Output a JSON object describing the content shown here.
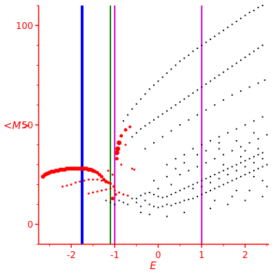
{
  "chart_data": {
    "type": "scatter",
    "xlabel": "E",
    "ylabel": "<M>",
    "xlim": [
      -2.75,
      2.55
    ],
    "ylim": [
      -10,
      110
    ],
    "x_ticks": [
      "-2",
      "-1",
      "0",
      "1",
      "2"
    ],
    "x_tick_values": [
      -2,
      -1,
      0,
      1,
      2
    ],
    "y_ticks": [
      "0",
      "50",
      "100"
    ],
    "y_tick_values": [
      0,
      50,
      100
    ],
    "colors": {
      "axis": "#ff0000",
      "points_black": "#000000",
      "points_red": "#ff0000",
      "line_blue": "#0000ff",
      "line_green": "#008000",
      "line_magenta": "#cc00cc"
    },
    "vertical_lines": [
      {
        "x": -1.75,
        "color": "#0000ff",
        "thick": true
      },
      {
        "x": -1.1,
        "color": "#008000",
        "thick": false
      },
      {
        "x": -1.0,
        "color": "#cc00cc",
        "thick": false
      },
      {
        "x": 1.0,
        "color": "#cc00cc",
        "thick": false
      }
    ],
    "red_series": [
      {
        "x": -2.65,
        "y": 24,
        "r": 3
      },
      {
        "x": -2.6,
        "y": 25,
        "r": 3
      },
      {
        "x": -2.55,
        "y": 25.5,
        "r": 3
      },
      {
        "x": -2.5,
        "y": 26,
        "r": 3
      },
      {
        "x": -2.45,
        "y": 26.5,
        "r": 3
      },
      {
        "x": -2.4,
        "y": 26.5,
        "r": 3
      },
      {
        "x": -2.35,
        "y": 27,
        "r": 3
      },
      {
        "x": -2.3,
        "y": 27,
        "r": 3
      },
      {
        "x": -2.25,
        "y": 27.5,
        "r": 3
      },
      {
        "x": -2.2,
        "y": 27.5,
        "r": 3
      },
      {
        "x": -2.15,
        "y": 27.5,
        "r": 3
      },
      {
        "x": -2.1,
        "y": 28,
        "r": 3
      },
      {
        "x": -2.05,
        "y": 28,
        "r": 3
      },
      {
        "x": -2.0,
        "y": 28,
        "r": 3
      },
      {
        "x": -1.95,
        "y": 28,
        "r": 3
      },
      {
        "x": -1.9,
        "y": 28,
        "r": 3
      },
      {
        "x": -1.85,
        "y": 28,
        "r": 3
      },
      {
        "x": -1.8,
        "y": 28,
        "r": 3
      },
      {
        "x": -1.75,
        "y": 28,
        "r": 3
      },
      {
        "x": -1.7,
        "y": 28,
        "r": 3
      },
      {
        "x": -1.65,
        "y": 28,
        "r": 3
      },
      {
        "x": -1.6,
        "y": 27.5,
        "r": 3
      },
      {
        "x": -1.55,
        "y": 27.5,
        "r": 3
      },
      {
        "x": -1.5,
        "y": 27,
        "r": 3
      },
      {
        "x": -1.45,
        "y": 26.5,
        "r": 2.5
      },
      {
        "x": -1.4,
        "y": 26,
        "r": 2.5
      },
      {
        "x": -1.35,
        "y": 25,
        "r": 2.5
      },
      {
        "x": -1.3,
        "y": 24,
        "r": 2.5
      },
      {
        "x": -1.25,
        "y": 22.5,
        "r": 2.5
      },
      {
        "x": -1.2,
        "y": 21.5,
        "r": 2.5
      },
      {
        "x": -1.15,
        "y": 21,
        "r": 2
      },
      {
        "x": -1.1,
        "y": 20.5,
        "r": 2
      },
      {
        "x": -2.2,
        "y": 19,
        "r": 1.5
      },
      {
        "x": -2.1,
        "y": 19.5,
        "r": 1.5
      },
      {
        "x": -2.0,
        "y": 20,
        "r": 1.5
      },
      {
        "x": -1.9,
        "y": 21,
        "r": 1.5
      },
      {
        "x": -1.8,
        "y": 21.5,
        "r": 1.5
      },
      {
        "x": -1.7,
        "y": 22,
        "r": 1.5
      },
      {
        "x": -1.6,
        "y": 22.5,
        "r": 1.5
      },
      {
        "x": -1.5,
        "y": 22.5,
        "r": 1.5
      },
      {
        "x": -1.4,
        "y": 22.5,
        "r": 1.5
      },
      {
        "x": -1.3,
        "y": 22,
        "r": 1.5
      },
      {
        "x": -1.2,
        "y": 21.5,
        "r": 1.5
      },
      {
        "x": -1.1,
        "y": 20.5,
        "r": 1.5
      },
      {
        "x": -1.6,
        "y": 15.5,
        "r": 1.5
      },
      {
        "x": -1.5,
        "y": 16,
        "r": 1.5
      },
      {
        "x": -1.4,
        "y": 16.5,
        "r": 1.5
      },
      {
        "x": -1.3,
        "y": 17,
        "r": 1.5
      },
      {
        "x": -1.2,
        "y": 17.5,
        "r": 1.5
      },
      {
        "x": -1.1,
        "y": 18,
        "r": 1.5
      },
      {
        "x": -1.0,
        "y": 17,
        "r": 1.5
      },
      {
        "x": -0.9,
        "y": 16,
        "r": 1.5
      },
      {
        "x": -0.8,
        "y": 15,
        "r": 1.5
      },
      {
        "x": -0.7,
        "y": 14.5,
        "r": 1.5
      },
      {
        "x": -0.95,
        "y": 33,
        "r": 2.5
      },
      {
        "x": -0.95,
        "y": 36,
        "r": 3.5
      },
      {
        "x": -0.93,
        "y": 38,
        "r": 3.5
      },
      {
        "x": -0.9,
        "y": 41,
        "r": 3.5
      },
      {
        "x": -0.85,
        "y": 44.5,
        "r": 2.5
      },
      {
        "x": -0.75,
        "y": 47.5,
        "r": 2.5
      },
      {
        "x": -0.65,
        "y": 49,
        "r": 2
      },
      {
        "x": -0.75,
        "y": 40,
        "r": 1.5
      },
      {
        "x": -0.85,
        "y": 30,
        "r": 1.5
      },
      {
        "x": -1.05,
        "y": 25,
        "r": 1.5
      },
      {
        "x": -1.15,
        "y": 27,
        "r": 1.5
      },
      {
        "x": -0.6,
        "y": 28,
        "r": 1.5
      },
      {
        "x": -0.55,
        "y": 27.5,
        "r": 1.5
      },
      {
        "x": -1.05,
        "y": 13,
        "r": 2.5
      },
      {
        "x": -0.98,
        "y": 15,
        "r": 2
      },
      {
        "x": -1.02,
        "y": 19,
        "r": 2
      }
    ],
    "black_series": [
      {
        "x": -1.2,
        "y": 12
      },
      {
        "x": -1.1,
        "y": 11
      },
      {
        "x": -1.0,
        "y": 10
      },
      {
        "x": -0.9,
        "y": 12
      },
      {
        "x": -0.8,
        "y": 11
      },
      {
        "x": -0.7,
        "y": 10
      },
      {
        "x": -0.6,
        "y": 13
      },
      {
        "x": -0.5,
        "y": 11
      },
      {
        "x": -0.4,
        "y": 9
      },
      {
        "x": -0.3,
        "y": 12
      },
      {
        "x": -0.2,
        "y": 10
      },
      {
        "x": -0.1,
        "y": 9
      },
      {
        "x": 0.0,
        "y": 8.5
      },
      {
        "x": 0.1,
        "y": 9
      },
      {
        "x": 0.2,
        "y": 10
      },
      {
        "x": 0.3,
        "y": 9.5
      },
      {
        "x": 0.4,
        "y": 10.5
      },
      {
        "x": 0.5,
        "y": 11
      },
      {
        "x": 0.6,
        "y": 12
      },
      {
        "x": 0.7,
        "y": 12.5
      },
      {
        "x": 0.8,
        "y": 13
      },
      {
        "x": 0.9,
        "y": 14
      },
      {
        "x": 1.0,
        "y": 15
      },
      {
        "x": 1.1,
        "y": 16
      },
      {
        "x": 1.2,
        "y": 17
      },
      {
        "x": 1.3,
        "y": 18
      },
      {
        "x": 1.4,
        "y": 19
      },
      {
        "x": 1.5,
        "y": 20
      },
      {
        "x": 1.6,
        "y": 21
      },
      {
        "x": 1.7,
        "y": 22
      },
      {
        "x": 1.8,
        "y": 23
      },
      {
        "x": 1.9,
        "y": 24
      },
      {
        "x": 2.0,
        "y": 25
      },
      {
        "x": 2.1,
        "y": 26
      },
      {
        "x": 2.2,
        "y": 27
      },
      {
        "x": 2.3,
        "y": 28
      },
      {
        "x": 2.4,
        "y": 29
      },
      {
        "x": 2.5,
        "y": 30
      },
      {
        "x": -0.5,
        "y": 13
      },
      {
        "x": -0.4,
        "y": 14.5
      },
      {
        "x": -0.3,
        "y": 15.5
      },
      {
        "x": -0.2,
        "y": 16
      },
      {
        "x": -0.1,
        "y": 15
      },
      {
        "x": 0.0,
        "y": 14
      },
      {
        "x": 0.1,
        "y": 13.5
      },
      {
        "x": 0.2,
        "y": 14
      },
      {
        "x": 0.3,
        "y": 15
      },
      {
        "x": 0.4,
        "y": 16
      },
      {
        "x": 0.5,
        "y": 17
      },
      {
        "x": 0.6,
        "y": 18
      },
      {
        "x": 0.7,
        "y": 19
      },
      {
        "x": 0.8,
        "y": 20
      },
      {
        "x": 0.9,
        "y": 21
      },
      {
        "x": 1.0,
        "y": 22
      },
      {
        "x": 1.1,
        "y": 23
      },
      {
        "x": 1.2,
        "y": 24
      },
      {
        "x": 1.3,
        "y": 25
      },
      {
        "x": 1.4,
        "y": 26
      },
      {
        "x": 1.5,
        "y": 27
      },
      {
        "x": 1.6,
        "y": 28
      },
      {
        "x": 1.7,
        "y": 29
      },
      {
        "x": 1.8,
        "y": 30
      },
      {
        "x": 1.9,
        "y": 31
      },
      {
        "x": 2.0,
        "y": 32
      },
      {
        "x": 2.1,
        "y": 33
      },
      {
        "x": 2.2,
        "y": 34
      },
      {
        "x": 2.3,
        "y": 35
      },
      {
        "x": 2.4,
        "y": 36
      },
      {
        "x": -0.8,
        "y": 52
      },
      {
        "x": -0.7,
        "y": 55
      },
      {
        "x": -0.6,
        "y": 58
      },
      {
        "x": -0.5,
        "y": 60.5
      },
      {
        "x": -0.4,
        "y": 63
      },
      {
        "x": -0.3,
        "y": 65.5
      },
      {
        "x": -0.2,
        "y": 68
      },
      {
        "x": -0.1,
        "y": 70
      },
      {
        "x": 0.0,
        "y": 72
      },
      {
        "x": 0.1,
        "y": 74
      },
      {
        "x": 0.2,
        "y": 76
      },
      {
        "x": 0.3,
        "y": 78
      },
      {
        "x": 0.4,
        "y": 80
      },
      {
        "x": 0.5,
        "y": 82
      },
      {
        "x": 0.6,
        "y": 83.5
      },
      {
        "x": 0.7,
        "y": 85
      },
      {
        "x": 0.8,
        "y": 87
      },
      {
        "x": 0.9,
        "y": 88.5
      },
      {
        "x": 1.0,
        "y": 90
      },
      {
        "x": 1.1,
        "y": 91.5
      },
      {
        "x": 1.2,
        "y": 93
      },
      {
        "x": 1.3,
        "y": 94.5
      },
      {
        "x": 1.4,
        "y": 96
      },
      {
        "x": 1.5,
        "y": 97.5
      },
      {
        "x": 1.6,
        "y": 99
      },
      {
        "x": 1.7,
        "y": 100.5
      },
      {
        "x": 1.8,
        "y": 102
      },
      {
        "x": 1.9,
        "y": 103.5
      },
      {
        "x": 2.0,
        "y": 105
      },
      {
        "x": 2.1,
        "y": 106.5
      },
      {
        "x": 2.2,
        "y": 107.5
      },
      {
        "x": 2.3,
        "y": 109
      },
      {
        "x": 2.4,
        "y": 110
      },
      {
        "x": -0.6,
        "y": 44
      },
      {
        "x": -0.5,
        "y": 46
      },
      {
        "x": -0.4,
        "y": 48
      },
      {
        "x": -0.3,
        "y": 49.5
      },
      {
        "x": -0.2,
        "y": 51
      },
      {
        "x": -0.1,
        "y": 52.5
      },
      {
        "x": 0.0,
        "y": 54
      },
      {
        "x": 0.1,
        "y": 55.5
      },
      {
        "x": 0.2,
        "y": 57
      },
      {
        "x": 0.3,
        "y": 58.5
      },
      {
        "x": 0.4,
        "y": 60
      },
      {
        "x": 0.5,
        "y": 61.5
      },
      {
        "x": 0.6,
        "y": 63
      },
      {
        "x": 0.7,
        "y": 64.5
      },
      {
        "x": 0.8,
        "y": 66
      },
      {
        "x": 0.9,
        "y": 67.5
      },
      {
        "x": 1.0,
        "y": 69
      },
      {
        "x": 1.1,
        "y": 70.5
      },
      {
        "x": 1.2,
        "y": 72
      },
      {
        "x": 1.3,
        "y": 73.5
      },
      {
        "x": 1.4,
        "y": 75
      },
      {
        "x": 1.5,
        "y": 76.5
      },
      {
        "x": 1.6,
        "y": 78
      },
      {
        "x": 1.7,
        "y": 79.5
      },
      {
        "x": 1.8,
        "y": 81
      },
      {
        "x": 1.9,
        "y": 82.5
      },
      {
        "x": 2.0,
        "y": 84
      },
      {
        "x": 2.1,
        "y": 85.5
      },
      {
        "x": 2.2,
        "y": 87
      },
      {
        "x": 2.3,
        "y": 88.5
      },
      {
        "x": 2.4,
        "y": 90
      },
      {
        "x": -0.3,
        "y": 38
      },
      {
        "x": -0.1,
        "y": 41
      },
      {
        "x": 0.1,
        "y": 44
      },
      {
        "x": 0.3,
        "y": 47
      },
      {
        "x": 0.5,
        "y": 50
      },
      {
        "x": 0.7,
        "y": 52.5
      },
      {
        "x": 0.9,
        "y": 55
      },
      {
        "x": 1.1,
        "y": 57.5
      },
      {
        "x": 1.3,
        "y": 60
      },
      {
        "x": 1.5,
        "y": 62.5
      },
      {
        "x": 1.7,
        "y": 65
      },
      {
        "x": 1.9,
        "y": 67
      },
      {
        "x": 2.1,
        "y": 69
      },
      {
        "x": 2.3,
        "y": 71
      },
      {
        "x": 2.45,
        "y": 72.5
      },
      {
        "x": 0.2,
        "y": 30
      },
      {
        "x": 0.4,
        "y": 33
      },
      {
        "x": 0.6,
        "y": 35
      },
      {
        "x": 0.8,
        "y": 38
      },
      {
        "x": 1.0,
        "y": 40
      },
      {
        "x": 1.2,
        "y": 42
      },
      {
        "x": 1.4,
        "y": 44
      },
      {
        "x": 1.6,
        "y": 46
      },
      {
        "x": 1.8,
        "y": 48
      },
      {
        "x": 2.0,
        "y": 50
      },
      {
        "x": 2.2,
        "y": 52
      },
      {
        "x": 2.4,
        "y": 54
      },
      {
        "x": 0.5,
        "y": 25
      },
      {
        "x": 0.7,
        "y": 27
      },
      {
        "x": 0.9,
        "y": 29
      },
      {
        "x": 1.1,
        "y": 31
      },
      {
        "x": 1.3,
        "y": 33
      },
      {
        "x": 1.5,
        "y": 35
      },
      {
        "x": 1.7,
        "y": 37
      },
      {
        "x": 1.9,
        "y": 39
      },
      {
        "x": 2.1,
        "y": 41
      },
      {
        "x": 2.3,
        "y": 43
      },
      {
        "x": 2.5,
        "y": 45
      },
      {
        "x": 0.8,
        "y": 18
      },
      {
        "x": 1.0,
        "y": 19
      },
      {
        "x": 1.2,
        "y": 21
      },
      {
        "x": 1.4,
        "y": 23
      },
      {
        "x": 1.6,
        "y": 25
      },
      {
        "x": 1.8,
        "y": 27
      },
      {
        "x": 2.0,
        "y": 29
      },
      {
        "x": 2.2,
        "y": 31
      },
      {
        "x": 2.4,
        "y": 33
      },
      {
        "x": -0.4,
        "y": 6
      },
      {
        "x": -0.2,
        "y": 5
      },
      {
        "x": 0.2,
        "y": 4
      },
      {
        "x": 0.6,
        "y": 6
      },
      {
        "x": 1.2,
        "y": 8
      },
      {
        "x": 1.6,
        "y": 10
      },
      {
        "x": 2.0,
        "y": 12
      },
      {
        "x": 2.4,
        "y": 14
      },
      {
        "x": 1.3,
        "y": 12
      },
      {
        "x": 1.7,
        "y": 14
      },
      {
        "x": 2.1,
        "y": 17
      },
      {
        "x": 2.5,
        "y": 19
      },
      {
        "x": 1.4,
        "y": 38
      },
      {
        "x": 1.8,
        "y": 42
      },
      {
        "x": 2.2,
        "y": 46
      },
      {
        "x": 1.5,
        "y": 30
      },
      {
        "x": 1.9,
        "y": 34
      },
      {
        "x": 2.3,
        "y": 38
      },
      {
        "x": 0.3,
        "y": 20
      },
      {
        "x": 0.0,
        "y": 18
      },
      {
        "x": -0.1,
        "y": 22
      },
      {
        "x": 0.2,
        "y": 24
      },
      {
        "x": 0.4,
        "y": 28
      },
      {
        "x": 0.6,
        "y": 31
      },
      {
        "x": 0.9,
        "y": 35
      },
      {
        "x": 1.1,
        "y": 37
      },
      {
        "x": 1.4,
        "y": 41
      },
      {
        "x": 2.0,
        "y": 37
      },
      {
        "x": 2.2,
        "y": 24
      },
      {
        "x": 2.4,
        "y": 22
      },
      {
        "x": 1.8,
        "y": 17
      }
    ]
  }
}
